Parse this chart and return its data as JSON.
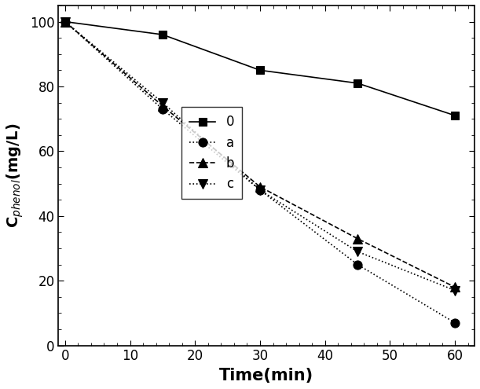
{
  "x": [
    0,
    15,
    30,
    45,
    60
  ],
  "series": [
    {
      "label": "0",
      "y": [
        100,
        96,
        85,
        81,
        71
      ],
      "linestyle": "-",
      "marker": "s",
      "color": "black",
      "markerfacecolor": "black",
      "markersize": 7,
      "linewidth": 1.2
    },
    {
      "label": "a",
      "y": [
        100,
        73,
        48,
        25,
        7
      ],
      "linestyle": ":",
      "marker": "o",
      "color": "black",
      "markerfacecolor": "black",
      "markersize": 8,
      "linewidth": 1.2
    },
    {
      "label": "b",
      "y": [
        100,
        74,
        49,
        33,
        18
      ],
      "linestyle": "--",
      "marker": "^",
      "color": "black",
      "markerfacecolor": "black",
      "markersize": 8,
      "linewidth": 1.2
    },
    {
      "label": "c",
      "y": [
        100,
        75,
        48,
        29,
        17
      ],
      "linestyle": ":",
      "marker": "v",
      "color": "black",
      "markerfacecolor": "black",
      "markersize": 8,
      "linewidth": 1.2
    }
  ],
  "xlabel": "Time(min)",
  "ylabel": "C$_{phenol}$(mg/L)",
  "xlim": [
    -1,
    63
  ],
  "ylim": [
    0,
    105
  ],
  "xticks": [
    0,
    10,
    20,
    30,
    40,
    50,
    60
  ],
  "yticks": [
    0,
    20,
    40,
    60,
    80,
    100
  ],
  "xlabel_fontsize": 15,
  "ylabel_fontsize": 14,
  "tick_fontsize": 12,
  "legend_fontsize": 12,
  "background_color": "white",
  "figsize": [
    6.11,
    4.95
  ],
  "dpi": 100
}
